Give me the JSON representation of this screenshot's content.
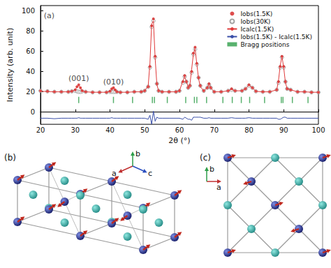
{
  "chart_data": {
    "type": "line",
    "x_label": "2θ (°)",
    "y_label": "Intensity (arb. unit)",
    "xlim": [
      20,
      100
    ],
    "xticks": [
      20,
      30,
      40,
      50,
      60,
      70,
      80,
      90,
      100
    ],
    "ylim": [
      -12,
      105
    ],
    "yticks": [
      0,
      20,
      40,
      60,
      80,
      100
    ],
    "grid": false,
    "legend": "top-right",
    "x": [
      20,
      22,
      24,
      26,
      28,
      29,
      30,
      30.5,
      31,
      31.5,
      32,
      33,
      35,
      37,
      39,
      40,
      40.5,
      41,
      41.5,
      42,
      43,
      45,
      47,
      49,
      50,
      51,
      51.5,
      52,
      52.5,
      53,
      53.5,
      54,
      55,
      57,
      59,
      60,
      61,
      61.5,
      62,
      62.5,
      63,
      63.5,
      64,
      64.5,
      65,
      65.5,
      66,
      67,
      68,
      68.5,
      69,
      70,
      72,
      74,
      75,
      76,
      78,
      79,
      80,
      81,
      82,
      84,
      86,
      88,
      88.5,
      89,
      89.5,
      90,
      90.5,
      91,
      92,
      94,
      96,
      98,
      100
    ],
    "series": [
      {
        "name": "Iobs(1.5K)",
        "type": "scatter",
        "marker": "filled_circle",
        "color": "#d62020",
        "values": [
          21,
          20.5,
          20,
          20,
          20,
          20.5,
          22,
          25,
          27,
          24,
          21,
          20,
          19.5,
          19.5,
          19.5,
          20.5,
          23,
          24,
          22,
          20,
          19.5,
          19.5,
          20,
          20,
          21,
          25,
          45,
          85,
          92,
          55,
          28,
          21,
          20,
          20,
          20,
          21,
          30,
          36,
          30,
          24,
          26,
          40,
          58,
          64,
          48,
          34,
          26,
          21,
          24,
          28,
          24,
          20,
          20,
          21,
          23,
          21,
          21,
          23,
          27,
          24,
          20.5,
          20,
          20,
          22,
          30,
          45,
          55,
          45,
          30,
          23,
          22,
          20,
          20,
          19.5,
          19.5
        ]
      },
      {
        "name": "Iobs(30K)",
        "type": "scatter",
        "marker": "open_circle",
        "color": "#8c8c8c",
        "values": [
          21,
          20.5,
          20,
          20,
          20,
          20.5,
          21,
          20.5,
          20,
          20,
          20.5,
          20,
          19.5,
          19.5,
          19.5,
          20,
          20,
          20,
          20,
          20,
          19.5,
          19.5,
          20,
          20,
          21,
          25,
          44,
          84,
          90,
          54,
          28,
          21,
          20,
          20,
          20,
          21,
          29,
          35,
          30,
          24,
          26,
          39,
          57,
          62,
          47,
          34,
          26,
          21,
          24,
          27,
          24,
          20,
          20,
          21,
          22,
          21,
          21,
          23,
          26,
          24,
          20.5,
          20,
          20,
          22,
          29,
          44,
          54,
          44,
          30,
          23,
          22,
          20,
          20,
          19.5,
          19.5
        ]
      },
      {
        "name": "Icalc(1.5K)",
        "type": "line",
        "line_style": "solid",
        "color": "#e03a3a",
        "values": [
          20.5,
          20.3,
          20,
          20,
          20,
          20.5,
          22,
          25,
          26.5,
          24,
          21,
          20,
          19.6,
          19.6,
          19.6,
          20.5,
          22.5,
          24,
          22,
          20,
          19.6,
          19.6,
          20,
          20,
          21,
          26,
          48,
          87,
          90,
          53,
          27,
          21,
          20,
          20,
          20,
          21,
          31,
          35,
          30,
          25,
          27,
          42,
          57,
          63,
          47,
          33,
          25,
          21,
          24,
          27.5,
          24,
          20,
          20,
          21,
          22.5,
          21,
          21,
          23,
          26.5,
          24,
          20.5,
          20,
          20,
          22,
          31,
          46,
          55,
          44,
          29,
          23,
          22,
          20,
          20,
          19.6,
          19.6
        ]
      },
      {
        "name": "Iobs(1.5K) - Icalc(1.5K)",
        "type": "line",
        "line_style": "solid",
        "color": "#3a4fa8",
        "values": [
          -6,
          -6,
          -6.5,
          -6,
          -6,
          -6,
          -6,
          -6,
          -5.5,
          -6,
          -6,
          -6,
          -6,
          -6,
          -6,
          -6,
          -5.5,
          -6,
          -6,
          -6,
          -6,
          -6,
          -6,
          -6,
          -6,
          -7,
          -3,
          -12,
          1,
          -9,
          -5,
          -6,
          -6,
          -6,
          -6,
          -6,
          -7,
          -5,
          -6,
          -7,
          -7,
          -8,
          -5,
          -5,
          -5,
          -5,
          -5,
          -6,
          -6,
          -5.5,
          -6,
          -6,
          -6,
          -6,
          -5.5,
          -6,
          -6,
          -6,
          -5.5,
          -6,
          -6,
          -6,
          -6,
          -6,
          -7,
          -7,
          -6,
          -5,
          -5,
          -6,
          -6,
          -6,
          -6,
          -6,
          -6
        ]
      },
      {
        "name": "Bragg positions",
        "type": "scatter",
        "marker": "vline",
        "color": "#2e9e4a",
        "x": [
          31,
          41,
          46.5,
          52.2,
          52.8,
          56.5,
          61.8,
          64.3,
          65,
          67.8,
          72.5,
          75.2,
          77.8,
          80.2,
          84.5,
          89.3,
          89.8,
          92.5,
          97
        ],
        "values": [
          12,
          12,
          12,
          12,
          12,
          12,
          12,
          12,
          12,
          12,
          12,
          12,
          12,
          12,
          12,
          12,
          12,
          12,
          12
        ]
      }
    ],
    "annotations": [
      {
        "text": "(a)",
        "x": 22.5,
        "y": 95
      },
      {
        "text": "(001)",
        "x": 31,
        "y": 33
      },
      {
        "text": "(010)",
        "x": 41,
        "y": 30
      }
    ]
  },
  "panels": [
    {
      "label": "(b)",
      "axes": [
        "a",
        "b",
        "c"
      ]
    },
    {
      "label": "(c)",
      "axes": [
        "a",
        "b"
      ]
    }
  ]
}
